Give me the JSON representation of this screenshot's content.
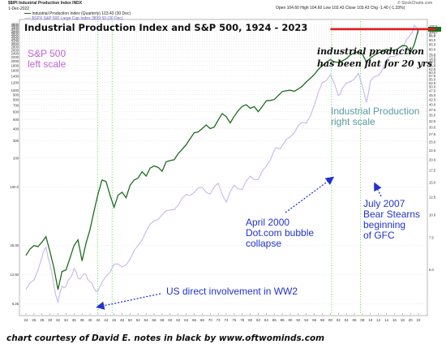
{
  "header": {
    "symbol": "$$IPI Industrial Production Index INDX",
    "date": "1-Dec-2022",
    "legend_ipi": "Industrial Production Index (Quarterly) 103.43 (30 Dec)",
    "legend_spx": "$SPX S&P 500 Large Cap Index 3839.50 (30 Dec)",
    "ohlc": "Open 104.60  High 104.60  Low 103.43  Close 103.43  Chg -1.40 (-1.33%)",
    "credit": "© StockCharts.com"
  },
  "colors": {
    "ipi": "#1f6b1f",
    "spx": "#c8b6ec",
    "flat_line": "#e01a1a",
    "arrow": "#2233cc",
    "vline": "#33cc33"
  },
  "annotations": {
    "title": "Industrial Production Index and S&P 500, 1924 - 2023",
    "sp500": "S&P 500\nleft scale",
    "ipi": "Industrial Production\nright scale",
    "flat": "industrial production\nhas been flat for 20 yrs",
    "dotcom": "April 2000\nDot.com bubble\ncollapse",
    "bear": "July 2007\nBear Stearns\nbeginning\nof GFC",
    "ww2": "US direct involvement in WW2",
    "footer": "chart courtesy of David E.   notes in black by www.oftwominds.com"
  },
  "chart_data": {
    "type": "line",
    "title": "Industrial Production Index and S&P 500, 1924 - 2023",
    "x_range": [
      1924,
      2023
    ],
    "x_tick_labels": [
      "24",
      "26",
      "28",
      "30",
      "32",
      "34",
      "36",
      "38",
      "40",
      "42",
      "44",
      "46",
      "48",
      "50",
      "52",
      "54",
      "56",
      "58",
      "60",
      "62",
      "64",
      "66",
      "68",
      "70",
      "72",
      "74",
      "76",
      "78",
      "80",
      "82",
      "84",
      "86",
      "88",
      "90",
      "92",
      "94",
      "96",
      "98",
      "00",
      "02",
      "04",
      "06",
      "08",
      "10",
      "12",
      "14",
      "16",
      "18",
      "20",
      "22"
    ],
    "left_axis": {
      "scale": "log",
      "range": [
        5,
        4800
      ],
      "tick_labels": [
        "4800",
        "4600",
        "4400",
        "4200",
        "4000",
        "3800",
        "3600",
        "3400",
        "3200",
        "3000",
        "2800",
        "2600",
        "2400",
        "2200",
        "2000",
        "1800",
        "1600",
        "1400",
        "1200",
        "1000",
        "900",
        "800",
        "700",
        "600",
        "500",
        "400",
        "300",
        "200",
        "100.0",
        "25.00",
        "12.50",
        "6.25"
      ],
      "tick_values": [
        4800,
        4600,
        4400,
        4200,
        4000,
        3800,
        3600,
        3400,
        3200,
        3000,
        2800,
        2600,
        2400,
        2200,
        2000,
        1800,
        1600,
        1400,
        1200,
        1000,
        900,
        800,
        700,
        600,
        500,
        400,
        300,
        200,
        100,
        25,
        12.5,
        6.25
      ]
    },
    "right_axis": {
      "scale": "log",
      "range": [
        2.9,
        110
      ],
      "tick_labels": [
        "107.5",
        "105.0",
        "100.0",
        "97.5",
        "95.0",
        "90.0",
        "85.0",
        "80.0",
        "75.0",
        "72.5",
        "70.0",
        "67.5",
        "65.0",
        "62.5",
        "60.0",
        "57.5",
        "55.0",
        "52.5",
        "50.0",
        "47.5",
        "45.0",
        "42.5",
        "40.0",
        "37.5",
        "35.0",
        "32.5",
        "30.0",
        "27.5",
        "25.0",
        "22.5",
        "20.0",
        "17.5",
        "15.0",
        "12.5",
        "10.0",
        "7.5",
        "5.0"
      ],
      "tick_values": [
        107.5,
        105,
        100,
        97.5,
        95,
        90,
        85,
        80,
        75,
        72.5,
        70,
        67.5,
        65,
        62.5,
        60,
        57.5,
        55,
        52.5,
        50,
        47.5,
        45,
        42.5,
        40,
        37.5,
        35,
        32.5,
        30,
        27.5,
        25,
        22.5,
        20,
        17.5,
        15,
        12.5,
        10,
        7.5,
        5
      ]
    },
    "series": [
      {
        "name": "Industrial Production Index (Quarterly)",
        "axis": "right",
        "x": [
          1924,
          1925,
          1926,
          1927,
          1928,
          1929,
          1930,
          1931,
          1932,
          1933,
          1934,
          1935,
          1936,
          1937,
          1938,
          1939,
          1940,
          1941,
          1942,
          1943,
          1944,
          1945,
          1946,
          1947,
          1948,
          1949,
          1950,
          1951,
          1952,
          1953,
          1954,
          1955,
          1956,
          1957,
          1958,
          1959,
          1960,
          1961,
          1962,
          1963,
          1964,
          1965,
          1966,
          1967,
          1968,
          1969,
          1970,
          1971,
          1972,
          1973,
          1974,
          1975,
          1976,
          1977,
          1978,
          1979,
          1980,
          1981,
          1982,
          1983,
          1984,
          1985,
          1986,
          1987,
          1988,
          1989,
          1990,
          1991,
          1992,
          1993,
          1994,
          1995,
          1996,
          1997,
          1998,
          1999,
          2000,
          2001,
          2002,
          2003,
          2004,
          2005,
          2006,
          2007,
          2008,
          2009,
          2010,
          2011,
          2012,
          2013,
          2014,
          2015,
          2016,
          2017,
          2018,
          2019,
          2020,
          2021,
          2022
        ],
        "values": [
          6.0,
          6.5,
          6.8,
          6.7,
          7.1,
          7.6,
          6.3,
          5.1,
          3.9,
          4.9,
          5.0,
          5.8,
          6.8,
          7.3,
          5.6,
          7.0,
          8.3,
          10.5,
          13.0,
          15.5,
          15.2,
          12.8,
          11.0,
          12.8,
          13.3,
          12.4,
          14.5,
          15.5,
          15.9,
          17.2,
          16.3,
          18.0,
          18.5,
          18.2,
          17.3,
          19.5,
          19.8,
          20.0,
          21.6,
          22.8,
          24.2,
          26.1,
          28.1,
          28.4,
          29.6,
          31.0,
          29.6,
          30.2,
          33.0,
          35.8,
          34.4,
          31.8,
          34.6,
          37.1,
          39.2,
          40.0,
          38.2,
          39.1,
          36.6,
          39.1,
          42.0,
          42.2,
          42.7,
          44.9,
          47.2,
          47.7,
          48.0,
          47.3,
          48.8,
          50.5,
          53.3,
          55.8,
          58.5,
          62.4,
          65.4,
          68.2,
          70.6,
          68.6,
          68.0,
          69.5,
          71.5,
          74.8,
          76.9,
          78.0,
          75.8,
          68.5,
          72.0,
          74.7,
          76.6,
          78.2,
          80.4,
          79.2,
          79.0,
          81.5,
          84.3,
          83.8,
          76.9,
          85.9,
          103.4
        ]
      },
      {
        "name": "S&P 500 Large Cap Index",
        "axis": "left",
        "x": [
          1924,
          1926,
          1928,
          1929,
          1930,
          1931,
          1932,
          1933,
          1934,
          1935,
          1936,
          1937,
          1938,
          1939,
          1940,
          1941,
          1942,
          1944,
          1946,
          1948,
          1950,
          1952,
          1954,
          1956,
          1958,
          1960,
          1962,
          1964,
          1966,
          1968,
          1970,
          1972,
          1974,
          1976,
          1978,
          1980,
          1982,
          1984,
          1986,
          1987,
          1988,
          1990,
          1992,
          1994,
          1996,
          1998,
          2000,
          2002,
          2003,
          2005,
          2007,
          2009,
          2010,
          2012,
          2014,
          2016,
          2018,
          2020,
          2021,
          2022
        ],
        "values": [
          8.8,
          11.0,
          19.0,
          24.0,
          16.0,
          9.5,
          6.5,
          9.5,
          9.5,
          11.5,
          14.5,
          11.5,
          12.0,
          12.5,
          10.6,
          9.0,
          8.5,
          12.0,
          16.0,
          15.0,
          18.0,
          25.0,
          35.0,
          45.0,
          52.0,
          58.0,
          65.0,
          84.0,
          88.0,
          100.0,
          85.0,
          110.0,
          70.0,
          105.0,
          95.0,
          130.0,
          120.0,
          165.0,
          240.0,
          250.0,
          270.0,
          330.0,
          435.0,
          460.0,
          700.0,
          1200.0,
          1450.0,
          880.0,
          1050.0,
          1230.0,
          1500.0,
          750.0,
          1250.0,
          1420.0,
          2050.0,
          2240.0,
          2700.0,
          3750.0,
          4700.0,
          3840.0
        ]
      }
    ],
    "reference_line": {
      "axis": "right",
      "value": 103.5,
      "x_range": [
        2000,
        2023
      ]
    },
    "event_lines": [
      1941.9,
      1945.5,
      2000.3,
      2007.5
    ],
    "grid": "horizontal dotted"
  }
}
